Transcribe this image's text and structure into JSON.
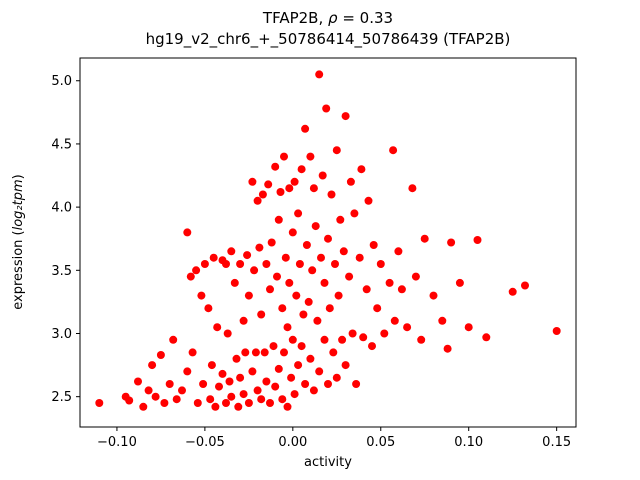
{
  "figure": {
    "title1_prefix": "TFAP2B, ",
    "title1_rho": "ρ",
    "title1_suffix": " = 0.33",
    "title_line2": "hg19_v2_chr6_+_50786414_50786439 (TFAP2B)"
  },
  "chart_data": {
    "type": "scatter",
    "title": "TFAP2B, ρ = 0.33",
    "subtitle": "hg19_v2_chr6_+_50786414_50786439 (TFAP2B)",
    "xlabel": "activity",
    "ylabel": "expression (log₂tpm)",
    "ylabel_parts": {
      "prefix": "expression (",
      "italic": "log₂tpm",
      "suffix": ")"
    },
    "marker_color": "#ff0000",
    "marker_radius": 4,
    "legend": "none",
    "grid": false,
    "xlim": [
      -0.121,
      0.161
    ],
    "ylim": [
      2.26,
      5.18
    ],
    "xticks": [
      -0.1,
      -0.05,
      0.0,
      0.05,
      0.1,
      0.15
    ],
    "xtick_labels": [
      "−0.10",
      "−0.05",
      "0.00",
      "0.05",
      "0.10",
      "0.15"
    ],
    "yticks": [
      2.5,
      3.0,
      3.5,
      4.0,
      4.5,
      5.0
    ],
    "ytick_labels": [
      "2.5",
      "3.0",
      "3.5",
      "4.0",
      "4.5",
      "5.0"
    ],
    "points": [
      [
        -0.11,
        2.45
      ],
      [
        -0.095,
        2.5
      ],
      [
        -0.093,
        2.47
      ],
      [
        -0.088,
        2.62
      ],
      [
        -0.085,
        2.42
      ],
      [
        -0.082,
        2.55
      ],
      [
        -0.08,
        2.75
      ],
      [
        -0.078,
        2.5
      ],
      [
        -0.075,
        2.83
      ],
      [
        -0.073,
        2.45
      ],
      [
        -0.07,
        2.6
      ],
      [
        -0.068,
        2.95
      ],
      [
        -0.066,
        2.48
      ],
      [
        -0.063,
        2.55
      ],
      [
        -0.06,
        3.8
      ],
      [
        -0.06,
        2.7
      ],
      [
        -0.058,
        3.45
      ],
      [
        -0.057,
        2.85
      ],
      [
        -0.055,
        3.5
      ],
      [
        -0.054,
        2.45
      ],
      [
        -0.052,
        3.3
      ],
      [
        -0.051,
        2.6
      ],
      [
        -0.05,
        3.55
      ],
      [
        -0.048,
        3.2
      ],
      [
        -0.047,
        2.48
      ],
      [
        -0.046,
        2.75
      ],
      [
        -0.045,
        3.6
      ],
      [
        -0.044,
        2.42
      ],
      [
        -0.043,
        3.05
      ],
      [
        -0.042,
        2.58
      ],
      [
        -0.04,
        3.58
      ],
      [
        -0.04,
        2.68
      ],
      [
        -0.038,
        3.55
      ],
      [
        -0.038,
        2.45
      ],
      [
        -0.037,
        3.0
      ],
      [
        -0.036,
        2.62
      ],
      [
        -0.035,
        3.65
      ],
      [
        -0.035,
        2.5
      ],
      [
        -0.033,
        3.4
      ],
      [
        -0.032,
        2.8
      ],
      [
        -0.031,
        2.42
      ],
      [
        -0.03,
        3.55
      ],
      [
        -0.03,
        2.65
      ],
      [
        -0.028,
        3.1
      ],
      [
        -0.028,
        2.52
      ],
      [
        -0.027,
        2.85
      ],
      [
        -0.026,
        3.62
      ],
      [
        -0.025,
        2.45
      ],
      [
        -0.025,
        3.3
      ],
      [
        -0.023,
        4.2
      ],
      [
        -0.023,
        2.7
      ],
      [
        -0.022,
        3.5
      ],
      [
        -0.021,
        2.85
      ],
      [
        -0.02,
        4.05
      ],
      [
        -0.02,
        2.55
      ],
      [
        -0.019,
        3.68
      ],
      [
        -0.018,
        3.15
      ],
      [
        -0.018,
        2.48
      ],
      [
        -0.017,
        4.1
      ],
      [
        -0.016,
        2.85
      ],
      [
        -0.015,
        3.55
      ],
      [
        -0.015,
        2.62
      ],
      [
        -0.014,
        4.18
      ],
      [
        -0.013,
        3.35
      ],
      [
        -0.013,
        2.45
      ],
      [
        -0.012,
        3.72
      ],
      [
        -0.011,
        2.9
      ],
      [
        -0.01,
        4.32
      ],
      [
        -0.01,
        2.58
      ],
      [
        -0.009,
        3.45
      ],
      [
        -0.008,
        3.9
      ],
      [
        -0.008,
        2.72
      ],
      [
        -0.007,
        4.12
      ],
      [
        -0.006,
        3.2
      ],
      [
        -0.006,
        2.48
      ],
      [
        -0.005,
        4.4
      ],
      [
        -0.005,
        2.85
      ],
      [
        -0.004,
        3.6
      ],
      [
        -0.003,
        3.05
      ],
      [
        -0.003,
        2.42
      ],
      [
        -0.002,
        4.15
      ],
      [
        -0.002,
        3.4
      ],
      [
        -0.001,
        2.65
      ],
      [
        0.0,
        3.8
      ],
      [
        0.0,
        2.95
      ],
      [
        0.001,
        4.2
      ],
      [
        0.001,
        2.52
      ],
      [
        0.002,
        3.3
      ],
      [
        0.003,
        3.95
      ],
      [
        0.003,
        2.75
      ],
      [
        0.004,
        3.55
      ],
      [
        0.005,
        4.3
      ],
      [
        0.005,
        2.9
      ],
      [
        0.006,
        3.15
      ],
      [
        0.007,
        4.62
      ],
      [
        0.007,
        2.6
      ],
      [
        0.008,
        3.7
      ],
      [
        0.009,
        3.25
      ],
      [
        0.01,
        4.4
      ],
      [
        0.01,
        2.8
      ],
      [
        0.011,
        3.5
      ],
      [
        0.012,
        4.15
      ],
      [
        0.012,
        2.55
      ],
      [
        0.013,
        3.85
      ],
      [
        0.014,
        3.1
      ],
      [
        0.015,
        5.05
      ],
      [
        0.015,
        2.7
      ],
      [
        0.016,
        3.6
      ],
      [
        0.017,
        4.25
      ],
      [
        0.018,
        2.95
      ],
      [
        0.018,
        3.4
      ],
      [
        0.019,
        4.78
      ],
      [
        0.02,
        2.6
      ],
      [
        0.02,
        3.75
      ],
      [
        0.021,
        3.2
      ],
      [
        0.022,
        4.1
      ],
      [
        0.023,
        2.85
      ],
      [
        0.024,
        3.55
      ],
      [
        0.025,
        4.45
      ],
      [
        0.025,
        2.65
      ],
      [
        0.026,
        3.3
      ],
      [
        0.027,
        3.9
      ],
      [
        0.028,
        2.95
      ],
      [
        0.029,
        3.65
      ],
      [
        0.03,
        4.72
      ],
      [
        0.03,
        2.75
      ],
      [
        0.032,
        3.45
      ],
      [
        0.033,
        4.2
      ],
      [
        0.034,
        3.0
      ],
      [
        0.035,
        3.95
      ],
      [
        0.036,
        2.6
      ],
      [
        0.038,
        3.6
      ],
      [
        0.039,
        4.3
      ],
      [
        0.04,
        2.97
      ],
      [
        0.042,
        3.35
      ],
      [
        0.043,
        4.05
      ],
      [
        0.045,
        2.9
      ],
      [
        0.046,
        3.7
      ],
      [
        0.048,
        3.2
      ],
      [
        0.05,
        3.55
      ],
      [
        0.052,
        3.0
      ],
      [
        0.055,
        3.4
      ],
      [
        0.057,
        4.45
      ],
      [
        0.058,
        3.1
      ],
      [
        0.06,
        3.65
      ],
      [
        0.062,
        3.35
      ],
      [
        0.065,
        3.05
      ],
      [
        0.068,
        4.15
      ],
      [
        0.07,
        3.45
      ],
      [
        0.073,
        2.95
      ],
      [
        0.075,
        3.75
      ],
      [
        0.08,
        3.3
      ],
      [
        0.085,
        3.1
      ],
      [
        0.088,
        2.88
      ],
      [
        0.09,
        3.72
      ],
      [
        0.095,
        3.4
      ],
      [
        0.1,
        3.05
      ],
      [
        0.105,
        3.74
      ],
      [
        0.11,
        2.97
      ],
      [
        0.125,
        3.33
      ],
      [
        0.132,
        3.38
      ],
      [
        0.15,
        3.02
      ]
    ]
  }
}
